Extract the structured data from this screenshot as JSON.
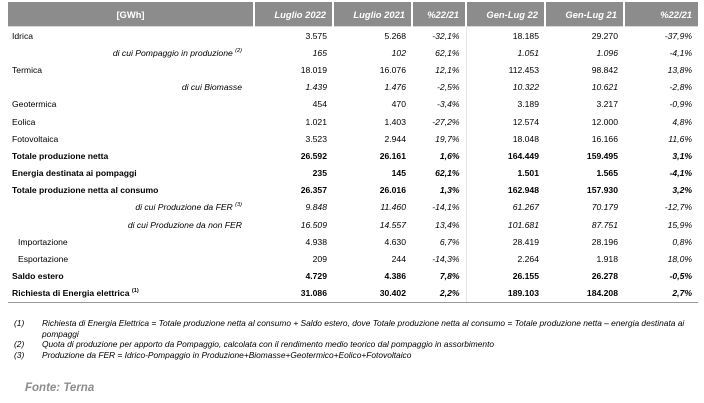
{
  "table": {
    "headers": [
      "[GWh]",
      "Luglio 2022",
      "Luglio 2021",
      "%22/21",
      "Gen-Lug 22",
      "Gen-Lug 21",
      "%22/21"
    ],
    "rows": [
      {
        "label": "Idrica",
        "sup": "",
        "style": "normal",
        "values": [
          "3.575",
          "5.268",
          "-32,1%",
          "18.185",
          "29.270",
          "-37,9%"
        ]
      },
      {
        "label": "di cui Pompaggio in produzione",
        "sup": "(2)",
        "style": "sub",
        "values": [
          "165",
          "102",
          "62,1%",
          "1.051",
          "1.096",
          "-4,1%"
        ]
      },
      {
        "label": "Termica",
        "sup": "",
        "style": "normal",
        "values": [
          "18.019",
          "16.076",
          "12,1%",
          "112.453",
          "98.842",
          "13,8%"
        ]
      },
      {
        "label": "di cui Biomasse",
        "sup": "",
        "style": "sub",
        "values": [
          "1.439",
          "1.476",
          "-2,5%",
          "10.322",
          "10.621",
          "-2,8%"
        ]
      },
      {
        "label": "Geotermica",
        "sup": "",
        "style": "normal",
        "values": [
          "454",
          "470",
          "-3,4%",
          "3.189",
          "3.217",
          "-0,9%"
        ]
      },
      {
        "label": "Eolica",
        "sup": "",
        "style": "normal",
        "values": [
          "1.021",
          "1.403",
          "-27,2%",
          "12.574",
          "12.000",
          "4,8%"
        ]
      },
      {
        "label": "Fotovoltaica",
        "sup": "",
        "style": "normal",
        "values": [
          "3.523",
          "2.944",
          "19,7%",
          "18.048",
          "16.166",
          "11,6%"
        ]
      },
      {
        "label": "Totale produzione netta",
        "sup": "",
        "style": "bold",
        "values": [
          "26.592",
          "26.161",
          "1,6%",
          "164.449",
          "159.495",
          "3,1%"
        ]
      },
      {
        "label": "Energia destinata ai pompaggi",
        "sup": "",
        "style": "bold",
        "values": [
          "235",
          "145",
          "62,1%",
          "1.501",
          "1.565",
          "-4,1%"
        ]
      },
      {
        "label": "Totale produzione netta al consumo",
        "sup": "",
        "style": "bold",
        "values": [
          "26.357",
          "26.016",
          "1,3%",
          "162.948",
          "157.930",
          "3,2%"
        ]
      },
      {
        "label": "di cui Produzione da FER",
        "sup": "(3)",
        "style": "sub",
        "values": [
          "9.848",
          "11.460",
          "-14,1%",
          "61.267",
          "70.179",
          "-12,7%"
        ]
      },
      {
        "label": "di cui Produzione da non FER",
        "sup": "",
        "style": "sub",
        "values": [
          "16.509",
          "14.557",
          "13,4%",
          "101.681",
          "87.751",
          "15,9%"
        ]
      },
      {
        "label": "Importazione",
        "sup": "",
        "style": "ind",
        "values": [
          "4.938",
          "4.630",
          "6,7%",
          "28.419",
          "28.196",
          "0,8%"
        ]
      },
      {
        "label": "Esportazione",
        "sup": "",
        "style": "ind",
        "values": [
          "209",
          "244",
          "-14,3%",
          "2.264",
          "1.918",
          "18,0%"
        ]
      },
      {
        "label": "Saldo estero",
        "sup": "",
        "style": "bold",
        "values": [
          "4.729",
          "4.386",
          "7,8%",
          "26.155",
          "26.278",
          "-0,5%"
        ]
      },
      {
        "label": "Richiesta di Energia elettrica",
        "sup": "(1)",
        "style": "bold",
        "values": [
          "31.086",
          "30.402",
          "2,2%",
          "189.103",
          "184.208",
          "2,7%"
        ]
      }
    ]
  },
  "notes": [
    {
      "num": "(1)",
      "text": "Richiesta di Energia Elettrica = Totale produzione netta al consumo + Saldo estero, dove Totale produzione netta al consumo = Totale produzione netta – energia destinata ai pompaggi"
    },
    {
      "num": "(2)",
      "text": "Quota di produzione per apporto da Pompaggio, calcolata con il rendimento medio teorico dal pompaggio in assorbimento"
    },
    {
      "num": "(3)",
      "text": "Produzione da FER = Idrico-Pompaggio in Produzione+Biomasse+Geotermico+Eolico+Fotovoltaico"
    }
  ],
  "source": "Fonte: Terna"
}
